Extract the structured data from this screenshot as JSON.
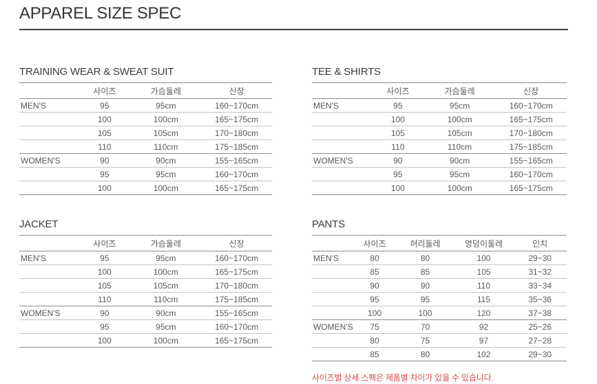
{
  "page": {
    "title": "APPAREL SIZE SPEC",
    "note": "사이즈별 상세 스펙은 제품별 차이가 있을 수 있습니다.",
    "note_color": "#d94a49",
    "rule_color": "#3f3f41",
    "major_line_color": "#8c8c8c",
    "row_line_color": "#c3c3c3",
    "text_color": "#58595b"
  },
  "tables": [
    {
      "title": "TRAINING WEAR & SWEAT SUIT",
      "headers": [
        "",
        "사이즈",
        "가슴둘레",
        "신장"
      ],
      "groups": [
        {
          "label": "MEN'S",
          "rows": [
            [
              "95",
              "95cm",
              "160~170cm"
            ],
            [
              "100",
              "100cm",
              "165~175cm"
            ],
            [
              "105",
              "105cm",
              "170~180cm"
            ],
            [
              "110",
              "110cm",
              "175~185cm"
            ]
          ]
        },
        {
          "label": "WOMEN'S",
          "rows": [
            [
              "90",
              "90cm",
              "155~165cm"
            ],
            [
              "95",
              "95cm",
              "160~170cm"
            ],
            [
              "100",
              "100cm",
              "165~175cm"
            ]
          ]
        }
      ]
    },
    {
      "title": "TEE & SHIRTS",
      "headers": [
        "",
        "사이즈",
        "가슴둘레",
        "신장"
      ],
      "groups": [
        {
          "label": "MEN'S",
          "rows": [
            [
              "95",
              "95cm",
              "160~170cm"
            ],
            [
              "100",
              "100cm",
              "165~175cm"
            ],
            [
              "105",
              "105cm",
              "170~180cm"
            ],
            [
              "110",
              "110cm",
              "175~185cm"
            ]
          ]
        },
        {
          "label": "WOMEN'S",
          "rows": [
            [
              "90",
              "90cm",
              "155~165cm"
            ],
            [
              "95",
              "95cm",
              "160~170cm"
            ],
            [
              "100",
              "100cm",
              "165~175cm"
            ]
          ]
        }
      ]
    },
    {
      "title": "JACKET",
      "headers": [
        "",
        "사이즈",
        "가슴둘레",
        "신장"
      ],
      "groups": [
        {
          "label": "MEN'S",
          "rows": [
            [
              "95",
              "95cm",
              "160~170cm"
            ],
            [
              "100",
              "100cm",
              "165~175cm"
            ],
            [
              "105",
              "105cm",
              "170~180cm"
            ],
            [
              "110",
              "110cm",
              "175~185cm"
            ]
          ]
        },
        {
          "label": "WOMEN'S",
          "rows": [
            [
              "90",
              "90cm",
              "155~165cm"
            ],
            [
              "95",
              "95cm",
              "160~170cm"
            ],
            [
              "100",
              "100cm",
              "165~175cm"
            ]
          ]
        }
      ]
    },
    {
      "title": "PANTS",
      "headers": [
        "",
        "사이즈",
        "허리둘레",
        "엉덩이둘레",
        "인치"
      ],
      "groups": [
        {
          "label": "MEN'S",
          "rows": [
            [
              "80",
              "80",
              "100",
              "29~30"
            ],
            [
              "85",
              "85",
              "105",
              "31~32"
            ],
            [
              "90",
              "90",
              "110",
              "33~34"
            ],
            [
              "95",
              "95",
              "115",
              "35~36"
            ],
            [
              "100",
              "100",
              "120",
              "37~38"
            ]
          ]
        },
        {
          "label": "WOMEN'S",
          "rows": [
            [
              "75",
              "70",
              "92",
              "25~26"
            ],
            [
              "80",
              "75",
              "97",
              "27~28"
            ],
            [
              "85",
              "80",
              "102",
              "29~30"
            ]
          ]
        }
      ]
    }
  ]
}
